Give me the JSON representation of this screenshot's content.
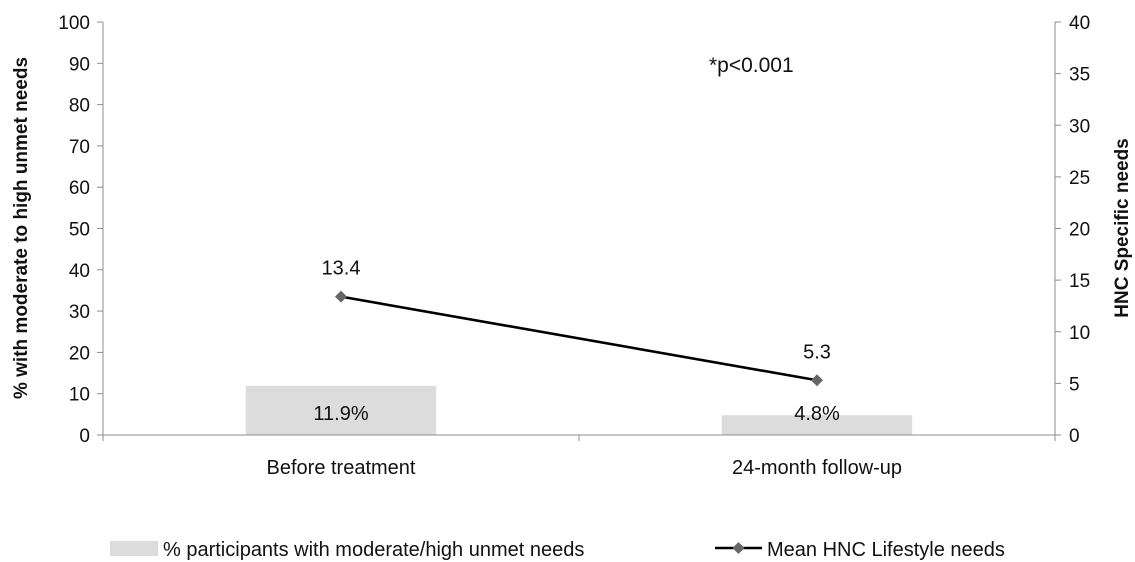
{
  "chart_data": {
    "type": "bar+line",
    "categories": [
      "Before treatment",
      "24-month follow-up"
    ],
    "bar_series": {
      "name": "% participants with moderate/high unmet needs",
      "values": [
        11.9,
        4.8
      ],
      "labels": [
        "11.9%",
        "4.8%"
      ],
      "axis": "left",
      "color": "#dcdcdc"
    },
    "line_series": {
      "name": "Mean HNC Lifestyle needs",
      "values": [
        13.4,
        5.3
      ],
      "labels": [
        "13.4",
        "5.3"
      ],
      "axis": "right",
      "color": "#000000",
      "marker_color": "#666666",
      "marker": "diamond"
    },
    "y_left": {
      "label": "% with moderate to high unmet needs",
      "ylim": [
        0,
        100
      ],
      "ticks": [
        "0",
        "10",
        "20",
        "30",
        "40",
        "50",
        "60",
        "70",
        "80",
        "90",
        "100"
      ]
    },
    "y_right": {
      "label": "HNC Specific needs",
      "ylim": [
        0,
        40
      ],
      "ticks": [
        "0",
        "5",
        "10",
        "15",
        "20",
        "25",
        "30",
        "35",
        "40"
      ]
    },
    "annotation": "*p<0.001",
    "grid": false,
    "legend_position": "bottom"
  }
}
